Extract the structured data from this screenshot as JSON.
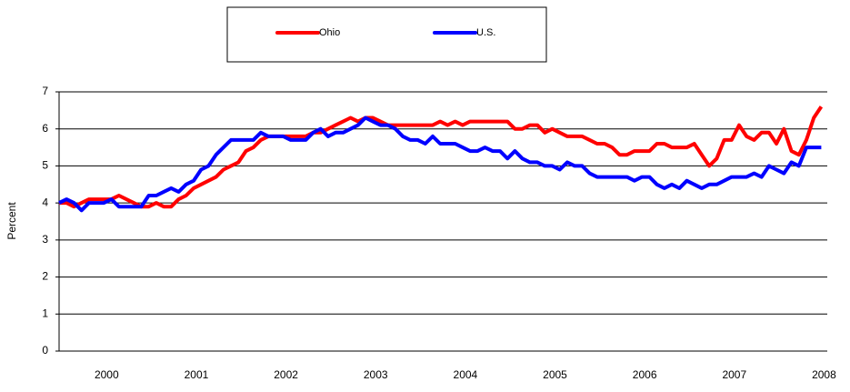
{
  "chart_data": {
    "type": "line",
    "y_label": "Percent",
    "categories": [
      null,
      null,
      null,
      null,
      null,
      null,
      "2000",
      null,
      null,
      null,
      null,
      null,
      null,
      null,
      null,
      null,
      null,
      null,
      "2001",
      null,
      null,
      null,
      null,
      null,
      null,
      null,
      null,
      null,
      null,
      null,
      "2002",
      null,
      null,
      null,
      null,
      null,
      null,
      null,
      null,
      null,
      null,
      null,
      "2003",
      null,
      null,
      null,
      null,
      null,
      null,
      null,
      null,
      null,
      null,
      null,
      "2004",
      null,
      null,
      null,
      null,
      null,
      null,
      null,
      null,
      null,
      null,
      null,
      "2005",
      null,
      null,
      null,
      null,
      null,
      null,
      null,
      null,
      null,
      null,
      null,
      "2006",
      null,
      null,
      null,
      null,
      null,
      null,
      null,
      null,
      null,
      null,
      null,
      "2007",
      null,
      null,
      null,
      null,
      null,
      null,
      null,
      null,
      null,
      null,
      null,
      "2008"
    ],
    "series": [
      {
        "name": "Ohio",
        "color": "#ff0000",
        "values": [
          4.0,
          4.0,
          3.9,
          4.0,
          4.1,
          4.1,
          4.1,
          4.1,
          4.2,
          4.1,
          4.0,
          3.9,
          3.9,
          4.0,
          3.9,
          3.9,
          4.1,
          4.2,
          4.4,
          4.5,
          4.6,
          4.7,
          4.9,
          5.0,
          5.1,
          5.4,
          5.5,
          5.7,
          5.8,
          5.8,
          5.8,
          5.8,
          5.8,
          5.8,
          5.9,
          5.9,
          6.0,
          6.1,
          6.2,
          6.3,
          6.2,
          6.3,
          6.3,
          6.2,
          6.1,
          6.1,
          6.1,
          6.1,
          6.1,
          6.1,
          6.1,
          6.2,
          6.1,
          6.2,
          6.1,
          6.2,
          6.2,
          6.2,
          6.2,
          6.2,
          6.2,
          6.0,
          6.0,
          6.1,
          6.1,
          5.9,
          6.0,
          5.9,
          5.8,
          5.8,
          5.8,
          5.7,
          5.6,
          5.6,
          5.5,
          5.3,
          5.3,
          5.4,
          5.4,
          5.4,
          5.6,
          5.6,
          5.5,
          5.5,
          5.5,
          5.6,
          5.3,
          5.0,
          5.2,
          5.7,
          5.7,
          6.1,
          5.8,
          5.7,
          5.9,
          5.9,
          5.6,
          6.0,
          5.4,
          5.3,
          5.7,
          6.3,
          6.6
        ]
      },
      {
        "name": "U.S.",
        "color": "#0000ff",
        "values": [
          4.0,
          4.1,
          4.0,
          3.8,
          4.0,
          4.0,
          4.0,
          4.1,
          3.9,
          3.9,
          3.9,
          3.9,
          4.2,
          4.2,
          4.3,
          4.4,
          4.3,
          4.5,
          4.6,
          4.9,
          5.0,
          5.3,
          5.5,
          5.7,
          5.7,
          5.7,
          5.7,
          5.9,
          5.8,
          5.8,
          5.8,
          5.7,
          5.7,
          5.7,
          5.9,
          6.0,
          5.8,
          5.9,
          5.9,
          6.0,
          6.1,
          6.3,
          6.2,
          6.1,
          6.1,
          6.0,
          5.8,
          5.7,
          5.7,
          5.6,
          5.8,
          5.6,
          5.6,
          5.6,
          5.5,
          5.4,
          5.4,
          5.5,
          5.4,
          5.4,
          5.2,
          5.4,
          5.2,
          5.1,
          5.1,
          5.0,
          5.0,
          4.9,
          5.1,
          5.0,
          5.0,
          4.8,
          4.7,
          4.7,
          4.7,
          4.7,
          4.7,
          4.6,
          4.7,
          4.7,
          4.5,
          4.4,
          4.5,
          4.4,
          4.6,
          4.5,
          4.4,
          4.5,
          4.5,
          4.6,
          4.7,
          4.7,
          4.7,
          4.8,
          4.7,
          5.0,
          4.9,
          4.8,
          5.1,
          5.0,
          5.5,
          5.5,
          5.5
        ]
      }
    ],
    "ylim": [
      0,
      7
    ],
    "yticks": [
      0,
      1,
      2,
      3,
      4,
      5,
      6,
      7
    ],
    "grid": true
  }
}
